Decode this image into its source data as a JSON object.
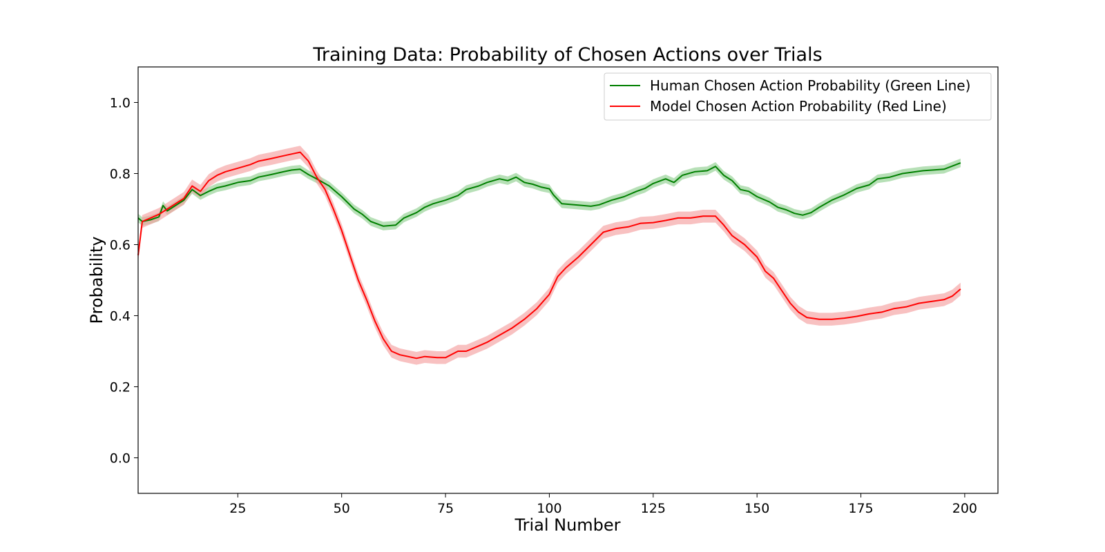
{
  "chart_data": {
    "type": "line",
    "title": "Training Data: Probability of Chosen Actions over Trials",
    "xlabel": "Trial Number",
    "ylabel": "Probability",
    "xlim": [
      1,
      208
    ],
    "ylim": [
      -0.1,
      1.1
    ],
    "xticks": [
      25,
      50,
      75,
      100,
      125,
      150,
      175,
      200
    ],
    "yticks": [
      0.0,
      0.2,
      0.4,
      0.6,
      0.8,
      1.0
    ],
    "grid": false,
    "legend_position": "top-right",
    "series": [
      {
        "name": "Human Chosen Action Probability (Green Line)",
        "color": "#008000",
        "band_color": "#90d090",
        "band_halfwidth": 0.012,
        "points": [
          [
            1,
            0.675
          ],
          [
            2,
            0.665
          ],
          [
            4,
            0.67
          ],
          [
            6,
            0.678
          ],
          [
            7,
            0.71
          ],
          [
            8,
            0.695
          ],
          [
            10,
            0.71
          ],
          [
            12,
            0.725
          ],
          [
            14,
            0.755
          ],
          [
            16,
            0.738
          ],
          [
            18,
            0.75
          ],
          [
            20,
            0.76
          ],
          [
            22,
            0.765
          ],
          [
            25,
            0.775
          ],
          [
            28,
            0.78
          ],
          [
            30,
            0.79
          ],
          [
            33,
            0.797
          ],
          [
            36,
            0.805
          ],
          [
            38,
            0.81
          ],
          [
            40,
            0.812
          ],
          [
            42,
            0.797
          ],
          [
            44,
            0.785
          ],
          [
            47,
            0.765
          ],
          [
            50,
            0.735
          ],
          [
            53,
            0.7
          ],
          [
            55,
            0.685
          ],
          [
            57,
            0.665
          ],
          [
            60,
            0.652
          ],
          [
            63,
            0.655
          ],
          [
            65,
            0.675
          ],
          [
            68,
            0.69
          ],
          [
            70,
            0.705
          ],
          [
            72,
            0.715
          ],
          [
            75,
            0.725
          ],
          [
            78,
            0.738
          ],
          [
            80,
            0.755
          ],
          [
            83,
            0.765
          ],
          [
            85,
            0.775
          ],
          [
            88,
            0.785
          ],
          [
            90,
            0.78
          ],
          [
            92,
            0.79
          ],
          [
            94,
            0.775
          ],
          [
            96,
            0.77
          ],
          [
            98,
            0.762
          ],
          [
            100,
            0.757
          ],
          [
            101,
            0.74
          ],
          [
            103,
            0.715
          ],
          [
            106,
            0.712
          ],
          [
            110,
            0.708
          ],
          [
            112,
            0.712
          ],
          [
            115,
            0.725
          ],
          [
            118,
            0.735
          ],
          [
            121,
            0.75
          ],
          [
            123,
            0.758
          ],
          [
            125,
            0.772
          ],
          [
            128,
            0.785
          ],
          [
            130,
            0.775
          ],
          [
            132,
            0.795
          ],
          [
            135,
            0.805
          ],
          [
            138,
            0.808
          ],
          [
            140,
            0.82
          ],
          [
            142,
            0.795
          ],
          [
            144,
            0.78
          ],
          [
            146,
            0.755
          ],
          [
            148,
            0.75
          ],
          [
            150,
            0.735
          ],
          [
            153,
            0.72
          ],
          [
            155,
            0.705
          ],
          [
            157,
            0.698
          ],
          [
            159,
            0.688
          ],
          [
            161,
            0.683
          ],
          [
            163,
            0.69
          ],
          [
            165,
            0.705
          ],
          [
            168,
            0.725
          ],
          [
            171,
            0.74
          ],
          [
            174,
            0.758
          ],
          [
            177,
            0.768
          ],
          [
            179,
            0.785
          ],
          [
            182,
            0.79
          ],
          [
            185,
            0.8
          ],
          [
            190,
            0.808
          ],
          [
            195,
            0.812
          ],
          [
            199,
            0.83
          ]
        ]
      },
      {
        "name": "Model Chosen Action Probability (Red Line)",
        "color": "#ff0000",
        "band_color": "#f5a0a0",
        "band_halfwidth": 0.018,
        "points": [
          [
            1,
            0.57
          ],
          [
            2,
            0.665
          ],
          [
            4,
            0.675
          ],
          [
            6,
            0.685
          ],
          [
            8,
            0.7
          ],
          [
            10,
            0.715
          ],
          [
            12,
            0.73
          ],
          [
            14,
            0.765
          ],
          [
            16,
            0.75
          ],
          [
            18,
            0.78
          ],
          [
            20,
            0.795
          ],
          [
            22,
            0.805
          ],
          [
            25,
            0.815
          ],
          [
            28,
            0.825
          ],
          [
            30,
            0.835
          ],
          [
            33,
            0.842
          ],
          [
            36,
            0.85
          ],
          [
            38,
            0.855
          ],
          [
            40,
            0.86
          ],
          [
            42,
            0.835
          ],
          [
            44,
            0.79
          ],
          [
            46,
            0.755
          ],
          [
            48,
            0.7
          ],
          [
            50,
            0.64
          ],
          [
            52,
            0.57
          ],
          [
            54,
            0.5
          ],
          [
            56,
            0.445
          ],
          [
            58,
            0.385
          ],
          [
            60,
            0.335
          ],
          [
            62,
            0.3
          ],
          [
            64,
            0.29
          ],
          [
            66,
            0.285
          ],
          [
            68,
            0.28
          ],
          [
            70,
            0.285
          ],
          [
            73,
            0.282
          ],
          [
            75,
            0.282
          ],
          [
            78,
            0.3
          ],
          [
            80,
            0.3
          ],
          [
            83,
            0.315
          ],
          [
            85,
            0.325
          ],
          [
            88,
            0.345
          ],
          [
            91,
            0.365
          ],
          [
            94,
            0.39
          ],
          [
            97,
            0.42
          ],
          [
            100,
            0.46
          ],
          [
            102,
            0.51
          ],
          [
            104,
            0.535
          ],
          [
            107,
            0.565
          ],
          [
            110,
            0.6
          ],
          [
            113,
            0.635
          ],
          [
            116,
            0.645
          ],
          [
            119,
            0.65
          ],
          [
            122,
            0.66
          ],
          [
            125,
            0.662
          ],
          [
            128,
            0.668
          ],
          [
            131,
            0.675
          ],
          [
            134,
            0.675
          ],
          [
            137,
            0.68
          ],
          [
            140,
            0.68
          ],
          [
            142,
            0.655
          ],
          [
            144,
            0.625
          ],
          [
            147,
            0.6
          ],
          [
            150,
            0.565
          ],
          [
            152,
            0.525
          ],
          [
            154,
            0.505
          ],
          [
            156,
            0.47
          ],
          [
            158,
            0.435
          ],
          [
            160,
            0.41
          ],
          [
            162,
            0.395
          ],
          [
            165,
            0.39
          ],
          [
            168,
            0.39
          ],
          [
            171,
            0.393
          ],
          [
            174,
            0.398
          ],
          [
            177,
            0.405
          ],
          [
            180,
            0.41
          ],
          [
            183,
            0.42
          ],
          [
            186,
            0.425
          ],
          [
            189,
            0.435
          ],
          [
            192,
            0.44
          ],
          [
            195,
            0.445
          ],
          [
            197,
            0.455
          ],
          [
            199,
            0.475
          ]
        ]
      }
    ]
  }
}
